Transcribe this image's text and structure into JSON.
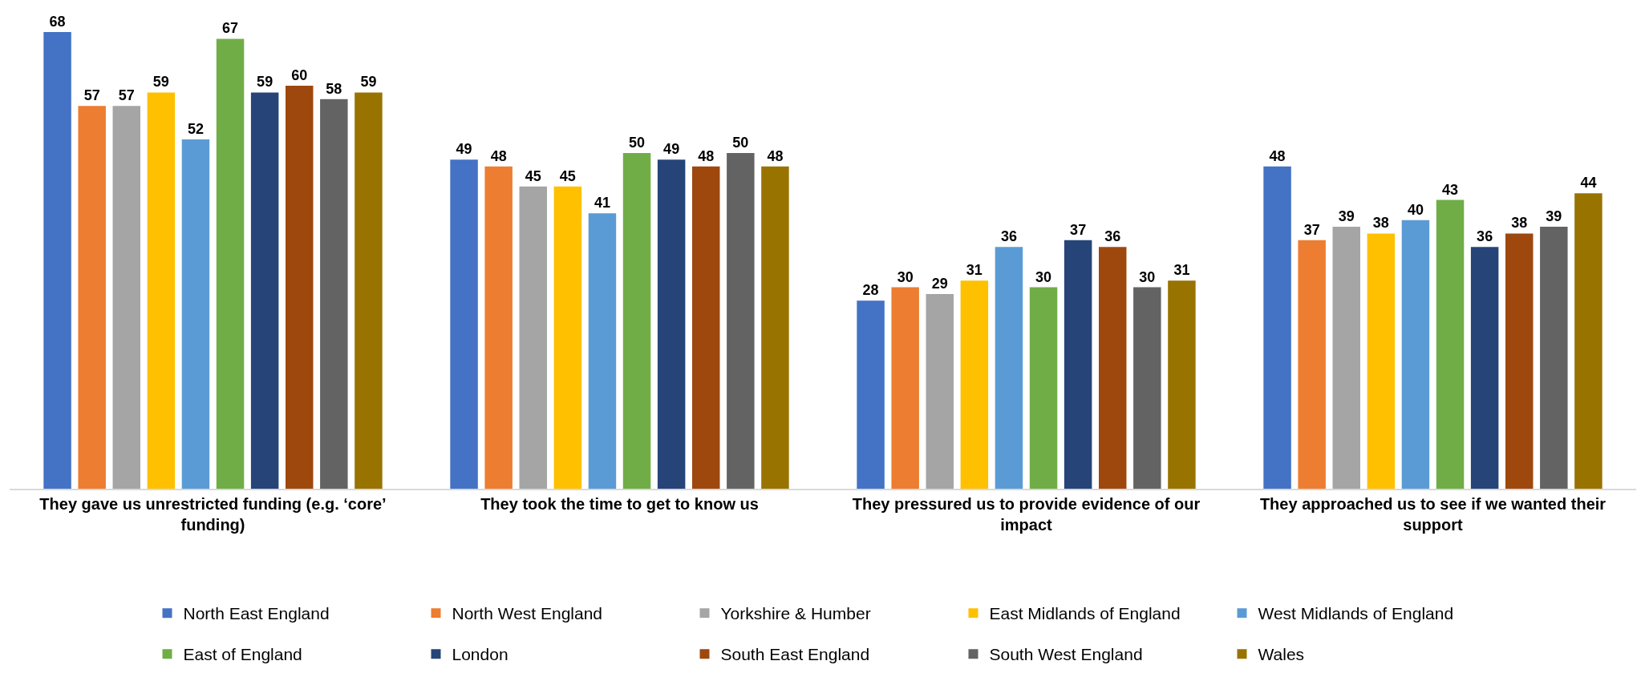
{
  "chart_data": {
    "type": "bar",
    "categories": [
      "They gave us unrestricted funding (e.g. ‘core’ funding)",
      "They took the time to get to know us",
      "They pressured us to provide evidence of our impact",
      "They approached us to see if we wanted their support"
    ],
    "series": [
      {
        "name": "North East England",
        "color": "#4472c4",
        "values": [
          68,
          49,
          28,
          48
        ]
      },
      {
        "name": "North West England",
        "color": "#ed7d31",
        "values": [
          57,
          48,
          30,
          37
        ]
      },
      {
        "name": "Yorkshire & Humber",
        "color": "#a5a5a5",
        "values": [
          57,
          45,
          29,
          39
        ]
      },
      {
        "name": "East Midlands of England",
        "color": "#ffc000",
        "values": [
          59,
          45,
          31,
          38
        ]
      },
      {
        "name": "West Midlands of England",
        "color": "#5b9bd5",
        "values": [
          52,
          41,
          36,
          40
        ]
      },
      {
        "name": "East of England",
        "color": "#70ad47",
        "values": [
          67,
          50,
          30,
          43
        ]
      },
      {
        "name": "London",
        "color": "#264478",
        "values": [
          59,
          49,
          37,
          36
        ]
      },
      {
        "name": "South East England",
        "color": "#9e480e",
        "values": [
          60,
          48,
          36,
          38
        ]
      },
      {
        "name": "South West England",
        "color": "#636363",
        "values": [
          58,
          50,
          30,
          39
        ]
      },
      {
        "name": "Wales",
        "color": "#997300",
        "values": [
          59,
          48,
          31,
          44
        ]
      }
    ],
    "data_labels": true,
    "legend": "bottom",
    "tick_labels": "x"
  }
}
